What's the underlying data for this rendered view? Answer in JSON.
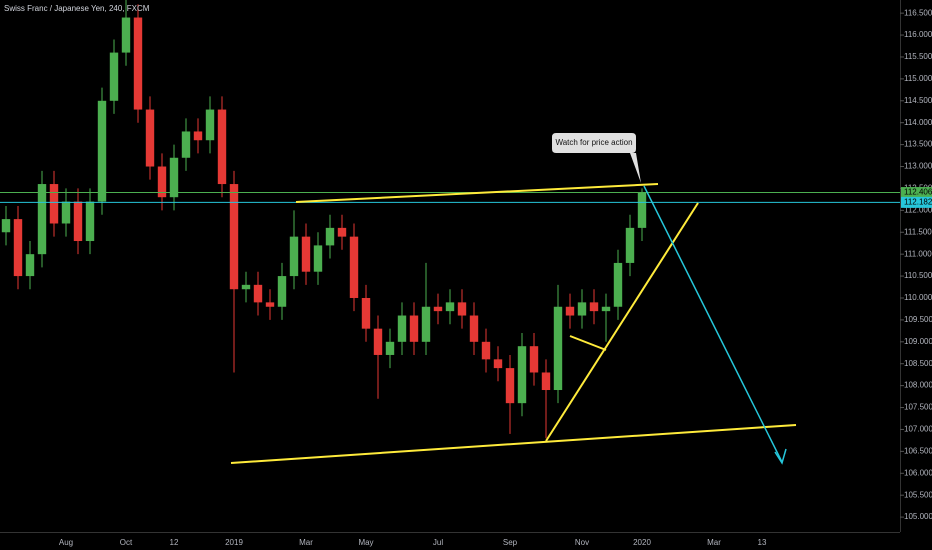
{
  "chart_data": {
    "type": "candlestick",
    "title": "Swiss Franc / Japanese Yen, 240, FXCM",
    "annotation": "Watch for price action",
    "categories": [
      null,
      null,
      null,
      null,
      null,
      "Aug",
      null,
      null,
      null,
      null,
      "Oct",
      null,
      null,
      null,
      "12",
      null,
      null,
      null,
      null,
      "2019",
      null,
      null,
      null,
      null,
      null,
      "Mar",
      null,
      null,
      null,
      null,
      "May",
      null,
      null,
      null,
      null,
      null,
      "Jul",
      null,
      null,
      null,
      null,
      null,
      "Sep",
      null,
      null,
      null,
      null,
      null,
      "Nov",
      null,
      null,
      null,
      null,
      "2020",
      null,
      null,
      null,
      null,
      null,
      "Mar",
      null,
      null,
      null,
      "13",
      null,
      null,
      null,
      null,
      null,
      null,
      null,
      null,
      null,
      null,
      null
    ],
    "open": [
      111.5,
      111.8,
      110.5,
      111.0,
      112.6,
      111.7,
      112.2,
      111.3,
      112.2,
      114.5,
      115.6,
      116.4,
      114.3,
      113.0,
      112.3,
      113.2,
      113.8,
      113.6,
      114.3,
      112.6,
      110.2,
      110.3,
      109.9,
      109.8,
      110.5,
      111.4,
      110.6,
      111.2,
      111.6,
      111.4,
      110.0,
      109.3,
      108.7,
      109.0,
      109.6,
      109.0,
      109.8,
      109.7,
      109.9,
      109.6,
      109.0,
      108.6,
      108.4,
      107.6,
      108.9,
      108.3,
      107.9,
      109.8,
      109.6,
      109.9,
      109.7,
      109.8,
      110.8,
      111.6,
      null,
      null,
      null,
      null,
      null,
      null,
      null,
      null,
      null,
      null,
      null,
      null,
      null,
      null,
      null,
      null,
      null,
      null,
      null,
      null,
      null
    ],
    "high": [
      112.1,
      112.1,
      111.3,
      112.9,
      112.9,
      112.5,
      112.5,
      112.5,
      114.8,
      115.9,
      116.8,
      116.7,
      114.6,
      113.3,
      113.5,
      114.1,
      114.1,
      114.6,
      114.6,
      112.9,
      110.6,
      110.6,
      110.2,
      110.8,
      112.0,
      111.7,
      111.5,
      111.9,
      111.9,
      111.7,
      110.3,
      109.6,
      109.3,
      109.9,
      109.9,
      110.8,
      110.1,
      110.2,
      110.2,
      109.9,
      109.3,
      108.9,
      108.7,
      109.2,
      109.2,
      108.6,
      110.3,
      110.1,
      110.2,
      110.2,
      110.1,
      111.1,
      111.9,
      112.5,
      null,
      null,
      null,
      null,
      null,
      null,
      null,
      null,
      null,
      null,
      null,
      null,
      null,
      null,
      null,
      null,
      null,
      null,
      null,
      null,
      null
    ],
    "low": [
      111.2,
      110.2,
      110.2,
      110.7,
      111.4,
      111.4,
      111.0,
      111.0,
      111.9,
      114.2,
      115.3,
      114.0,
      112.7,
      112.0,
      112.0,
      112.9,
      113.3,
      113.3,
      112.3,
      108.3,
      109.9,
      109.6,
      109.5,
      109.5,
      110.2,
      110.3,
      110.3,
      110.9,
      111.1,
      109.7,
      109.0,
      107.7,
      108.4,
      108.7,
      108.7,
      108.7,
      109.4,
      109.4,
      109.3,
      108.7,
      108.3,
      108.1,
      106.9,
      107.3,
      108.0,
      106.8,
      107.6,
      109.3,
      109.3,
      109.4,
      109.0,
      109.5,
      110.5,
      111.3,
      null,
      null,
      null,
      null,
      null,
      null,
      null,
      null,
      null,
      null,
      null,
      null,
      null,
      null,
      null,
      null,
      null,
      null,
      null,
      null,
      null
    ],
    "close": [
      111.8,
      110.5,
      111.0,
      112.6,
      111.7,
      112.2,
      111.3,
      112.2,
      114.5,
      115.6,
      116.4,
      114.3,
      113.0,
      112.3,
      113.2,
      113.8,
      113.6,
      114.3,
      112.6,
      110.2,
      110.3,
      109.9,
      109.8,
      110.5,
      111.4,
      110.6,
      111.2,
      111.6,
      111.4,
      110.0,
      109.3,
      108.7,
      109.0,
      109.6,
      109.0,
      109.8,
      109.7,
      109.9,
      109.6,
      109.0,
      108.6,
      108.4,
      107.6,
      108.9,
      108.3,
      107.9,
      109.8,
      109.6,
      109.9,
      109.7,
      109.8,
      110.8,
      111.6,
      112.4,
      null,
      null,
      null,
      null,
      null,
      null,
      null,
      null,
      null,
      null,
      null,
      null,
      null,
      null,
      null,
      null,
      null,
      null,
      null,
      null,
      null
    ],
    "up_color": "#4caf50",
    "down_color": "#e53935",
    "hlines": [
      {
        "value": 112.406,
        "color": "#4caf50"
      },
      {
        "value": 112.182,
        "color": "#26c6da"
      }
    ],
    "ylim": [
      104.66,
      116.8
    ],
    "yticks": [
      {
        "value": 105,
        "label": "105.000"
      },
      {
        "value": 105.5,
        "label": "105.500"
      },
      {
        "value": 106,
        "label": "106.000"
      },
      {
        "value": 106.5,
        "label": "106.500"
      },
      {
        "value": 107,
        "label": "107.000"
      },
      {
        "value": 107.5,
        "label": "107.500"
      },
      {
        "value": 108,
        "label": "108.000"
      },
      {
        "value": 108.5,
        "label": "108.500"
      },
      {
        "value": 109,
        "label": "109.000"
      },
      {
        "value": 109.5,
        "label": "109.500"
      },
      {
        "value": 110,
        "label": "110.000"
      },
      {
        "value": 110.5,
        "label": "110.500"
      },
      {
        "value": 111,
        "label": "111.000"
      },
      {
        "value": 111.5,
        "label": "111.500"
      },
      {
        "value": 112,
        "label": "112.000"
      },
      {
        "value": 112.5,
        "label": "112.500"
      },
      {
        "value": 113,
        "label": "113.000"
      },
      {
        "value": 113.5,
        "label": "113.500"
      },
      {
        "value": 114,
        "label": "114.000"
      },
      {
        "value": 114.5,
        "label": "114.500"
      },
      {
        "value": 115,
        "label": "115.000"
      },
      {
        "value": 115.5,
        "label": "115.500"
      },
      {
        "value": 116,
        "label": "116.000"
      },
      {
        "value": 116.5,
        "label": "116.500"
      }
    ],
    "grid": false
  }
}
